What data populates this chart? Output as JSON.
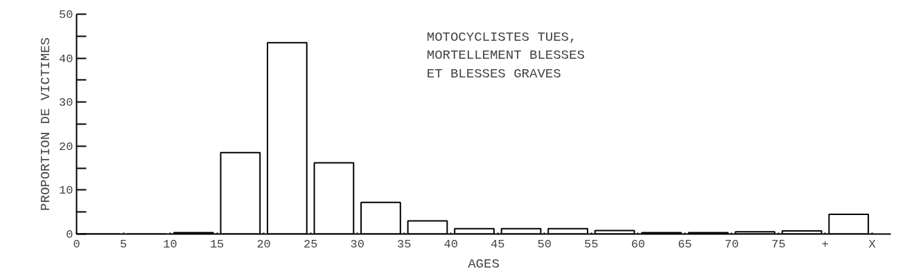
{
  "chart_data": {
    "type": "histogram",
    "bins": [
      0,
      5,
      10,
      15,
      20,
      25,
      30,
      35,
      40,
      45,
      50,
      55,
      60,
      65,
      70,
      75,
      80,
      85
    ],
    "values": [
      0,
      0,
      0.3,
      18.5,
      43.5,
      16.2,
      7.2,
      3,
      1.2,
      1.2,
      1.2,
      0.8,
      0.3,
      0.3,
      0.5,
      0.7,
      4.5
    ],
    "color": "#ffffff",
    "xlabel": "AGES",
    "ylabel": "PROPORTION DE VICTIMES",
    "annotations": [
      "MOTOCYCLISTES TUES,\nMORTELLEMENT BLESSES\nET BLESSES GRAVES"
    ],
    "xlim": [
      0,
      87
    ],
    "ylim": [
      0,
      50
    ],
    "xticks": [
      0,
      5,
      10,
      15,
      20,
      25,
      30,
      35,
      40,
      45,
      50,
      55,
      60,
      65,
      70,
      75,
      {
        "value": 80,
        "label": "+"
      },
      {
        "value": 85,
        "label": "X"
      }
    ],
    "yticks": [
      0,
      {
        "value": 5,
        "label": null
      },
      10,
      {
        "value": 15,
        "label": null
      },
      20,
      {
        "value": 25,
        "label": null
      },
      30,
      {
        "value": 35,
        "label": null
      },
      40,
      {
        "value": 45,
        "label": null
      },
      50
    ],
    "grid": false
  }
}
